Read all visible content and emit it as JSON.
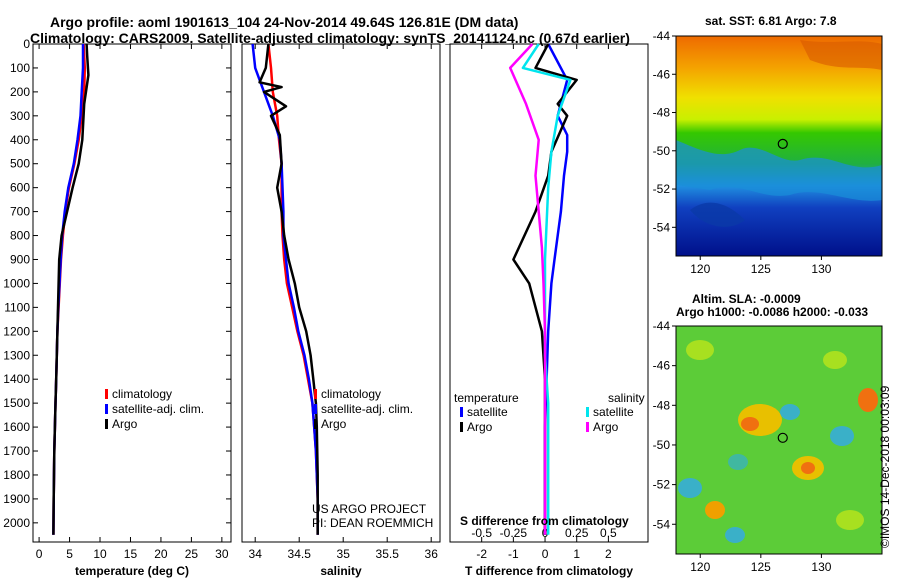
{
  "header": {
    "title_line1": "Argo profile: aoml 1901613_104 24-Nov-2014 49.64S 126.81E (DM data)",
    "title_line2": "Climatology: CARS2009. Satellite-adjusted climatology: synTS_20141124.nc (0.67d earlier)"
  },
  "sst_label": "sat. SST: 6.81 Argo: 7.8",
  "altim_label1": "Altim. SLA: -0.0009",
  "altim_label2": "Argo h1000: -0.0086 h2000: -0.033",
  "footer_stamp": "©IMOS 14-Dec-2018 00:03:09",
  "project_note": [
    "US ARGO PROJECT",
    "PI: DEAN ROEMMICH"
  ],
  "colors": {
    "climatology": "#ff0000",
    "satellite": "#0000ff",
    "argo": "#000000",
    "t_sat": "#0000ff",
    "s_sat": "#00e5ee",
    "s_argo": "#ff00ff"
  },
  "chart_data": [
    {
      "type": "line",
      "id": "temperature",
      "xlabel": "temperature (deg C)",
      "ylabel": "",
      "xlim": [
        -1,
        31.5
      ],
      "ylim": [
        2080,
        0
      ],
      "xticks": [
        0,
        5,
        10,
        15,
        20,
        25,
        30
      ],
      "xticklabels": [
        "0",
        "5",
        "10",
        "15",
        "20",
        "25",
        "30"
      ],
      "yticks": [
        0,
        100,
        200,
        300,
        400,
        500,
        600,
        700,
        800,
        900,
        1000,
        1100,
        1200,
        1300,
        1400,
        1500,
        1600,
        1700,
        1800,
        1900,
        2000
      ],
      "yticklabels": [
        "0",
        "100",
        "200",
        "300",
        "400",
        "500",
        "600",
        "700",
        "800",
        "900",
        "1000",
        "1100",
        "1200",
        "1300",
        "1400",
        "1500",
        "1600",
        "1700",
        "1800",
        "1900",
        "2000"
      ],
      "legend": [
        "climatology",
        "satellite-adj. clim.",
        "Argo"
      ],
      "series": [
        {
          "name": "climatology",
          "x": [
            7.3,
            7.5,
            7.4,
            7.0,
            6.5,
            5.8,
            4.9,
            4.3,
            3.9,
            3.6,
            3.4,
            3.2,
            3.0,
            2.9,
            2.8,
            2.7,
            2.6,
            2.5,
            2.45,
            2.4,
            2.35
          ],
          "y": [
            0,
            100,
            200,
            300,
            400,
            500,
            600,
            700,
            800,
            900,
            1000,
            1100,
            1200,
            1300,
            1400,
            1500,
            1600,
            1700,
            1800,
            1900,
            2050
          ]
        },
        {
          "name": "satellite-adj. clim.",
          "x": [
            7.2,
            7.2,
            7.0,
            6.8,
            6.3,
            5.7,
            4.8,
            4.2,
            3.8,
            3.55,
            3.35,
            3.15,
            3.0,
            2.9,
            2.8,
            2.7,
            2.6,
            2.5,
            2.45,
            2.4,
            2.35
          ],
          "y": [
            0,
            100,
            200,
            300,
            400,
            500,
            600,
            700,
            800,
            900,
            1000,
            1100,
            1200,
            1300,
            1400,
            1500,
            1600,
            1700,
            1800,
            1900,
            2050
          ]
        },
        {
          "name": "Argo",
          "x": [
            7.8,
            7.9,
            8.1,
            7.4,
            7.1,
            6.5,
            5.5,
            4.6,
            3.7,
            3.3,
            3.2,
            3.1,
            3.0,
            2.9,
            2.8,
            2.7,
            2.6,
            2.5,
            2.45,
            2.4,
            2.35
          ],
          "y": [
            0,
            50,
            130,
            250,
            400,
            500,
            600,
            700,
            800,
            900,
            1000,
            1100,
            1200,
            1300,
            1400,
            1500,
            1600,
            1700,
            1800,
            1900,
            2050
          ]
        }
      ]
    },
    {
      "type": "line",
      "id": "salinity",
      "xlabel": "salinity",
      "ylabel": "",
      "xlim": [
        33.85,
        36.1
      ],
      "ylim": [
        2080,
        0
      ],
      "xticks": [
        34,
        34.5,
        35,
        35.5,
        36
      ],
      "xticklabels": [
        "34",
        "34.5",
        "35",
        "35.5",
        "36"
      ],
      "legend": [
        "climatology",
        "satellite-adj. clim.",
        "Argo"
      ],
      "series": [
        {
          "name": "climatology",
          "x": [
            34.15,
            34.18,
            34.2,
            34.25,
            34.27,
            34.3,
            34.3,
            34.3,
            34.31,
            34.33,
            34.36,
            34.42,
            34.48,
            34.55,
            34.6,
            34.65,
            34.67,
            34.69,
            34.7,
            34.71,
            34.71
          ],
          "y": [
            0,
            100,
            200,
            300,
            400,
            500,
            600,
            700,
            800,
            900,
            1000,
            1100,
            1200,
            1300,
            1400,
            1500,
            1600,
            1700,
            1800,
            1900,
            2050
          ]
        },
        {
          "name": "satellite-adj. clim.",
          "x": [
            33.97,
            34.0,
            34.05,
            34.2,
            34.28,
            34.3,
            34.31,
            34.32,
            34.32,
            34.35,
            34.38,
            34.44,
            34.49,
            34.56,
            34.61,
            34.65,
            34.67,
            34.69,
            34.7,
            34.71,
            34.71
          ],
          "y": [
            0,
            100,
            150,
            300,
            400,
            500,
            600,
            700,
            800,
            900,
            1000,
            1100,
            1200,
            1300,
            1400,
            1500,
            1600,
            1700,
            1800,
            1900,
            2050
          ]
        },
        {
          "name": "Argo",
          "x": [
            34.15,
            34.12,
            34.05,
            34.3,
            34.1,
            34.35,
            34.18,
            34.28,
            34.3,
            34.25,
            34.3,
            34.33,
            34.38,
            34.45,
            34.5,
            34.58,
            34.63,
            34.66,
            34.69,
            34.7,
            34.71,
            34.71
          ],
          "y": [
            0,
            100,
            160,
            180,
            200,
            260,
            300,
            380,
            500,
            600,
            700,
            800,
            900,
            1000,
            1100,
            1200,
            1300,
            1400,
            1500,
            1600,
            1800,
            2050
          ]
        }
      ]
    },
    {
      "type": "line",
      "id": "difference",
      "xlabel": "T difference from climatology",
      "secondary_label": "S difference from climatology",
      "xlim": [
        -3,
        3.25
      ],
      "ylim": [
        2080,
        0
      ],
      "xticks": [
        -2,
        -1,
        0,
        1,
        2
      ],
      "xticklabels": [
        "-2",
        "-1",
        "0",
        "1",
        "2"
      ],
      "s_ticks": [
        -2,
        -1,
        0,
        1,
        2
      ],
      "s_ticklabels": [
        "-0.5",
        "-0.25",
        "0",
        "0.25",
        "0.5"
      ],
      "legend_left_title": "temperature",
      "legend_right_title": "salinity",
      "legend_left": [
        "satellite",
        "Argo"
      ],
      "legend_right": [
        "satellite",
        "Argo"
      ],
      "series": [
        {
          "name": "T satellite",
          "x": [
            0.1,
            0.7,
            0.4,
            0.7,
            0.7,
            0.6,
            0.5,
            0.4,
            0.3,
            0.2,
            0.1,
            0.05,
            0.0,
            0.0,
            0.0
          ],
          "y": [
            0,
            150,
            300,
            380,
            450,
            550,
            700,
            800,
            900,
            1000,
            1200,
            1400,
            1600,
            1800,
            2050
          ]
        },
        {
          "name": "T Argo",
          "x": [
            0.1,
            -0.3,
            1.0,
            0.4,
            0.7,
            0.2,
            0.1,
            -0.3,
            -1.0,
            -0.5,
            -0.1,
            0.0,
            0.0,
            0.0,
            0.0
          ],
          "y": [
            0,
            100,
            150,
            250,
            300,
            450,
            550,
            700,
            900,
            1000,
            1200,
            1400,
            1600,
            1800,
            2050
          ]
        },
        {
          "name": "S satellite",
          "x": [
            -0.2,
            -0.7,
            0.8,
            0.4,
            0.2,
            0.1,
            0.05,
            0.0,
            0.0,
            0.0,
            0.1,
            0.1,
            0.1,
            0.1,
            0.1
          ],
          "y": [
            0,
            100,
            150,
            300,
            450,
            600,
            750,
            900,
            1100,
            1300,
            1500,
            1700,
            1900,
            2000,
            2050
          ]
        },
        {
          "name": "S Argo",
          "x": [
            -0.4,
            -1.1,
            -0.6,
            -0.2,
            -0.3,
            -0.2,
            -0.1,
            -0.05,
            0.0,
            0.0,
            0.0,
            0.0,
            0.0
          ],
          "y": [
            0,
            100,
            250,
            400,
            550,
            700,
            850,
            1000,
            1200,
            1400,
            1600,
            1800,
            2050
          ]
        }
      ]
    },
    {
      "type": "heatmap",
      "id": "sst_map",
      "title": "sat. SST: 6.81 Argo: 7.8",
      "xlim": [
        118,
        135
      ],
      "ylim": [
        -55.5,
        -44
      ],
      "xticks": [
        120,
        125,
        130
      ],
      "xticklabels": [
        "120",
        "125",
        "130"
      ],
      "yticks": [
        -44,
        -46,
        -48,
        -50,
        -52,
        -54
      ],
      "yticklabels": [
        "-44",
        "-46",
        "-48",
        "-50",
        "-52",
        "-54"
      ],
      "marker": {
        "lon": 126.81,
        "lat": -49.64
      }
    },
    {
      "type": "heatmap",
      "id": "sla_map",
      "title": "Altim. SLA: -0.0009",
      "xlim": [
        118,
        135
      ],
      "ylim": [
        -55.5,
        -44
      ],
      "xticks": [
        120,
        125,
        130
      ],
      "xticklabels": [
        "120",
        "125",
        "130"
      ],
      "yticks": [
        -44,
        -46,
        -48,
        -50,
        -52,
        -54
      ],
      "yticklabels": [
        "-44",
        "-46",
        "-48",
        "-50",
        "-52",
        "-54"
      ],
      "marker": {
        "lon": 126.81,
        "lat": -49.64
      }
    }
  ]
}
